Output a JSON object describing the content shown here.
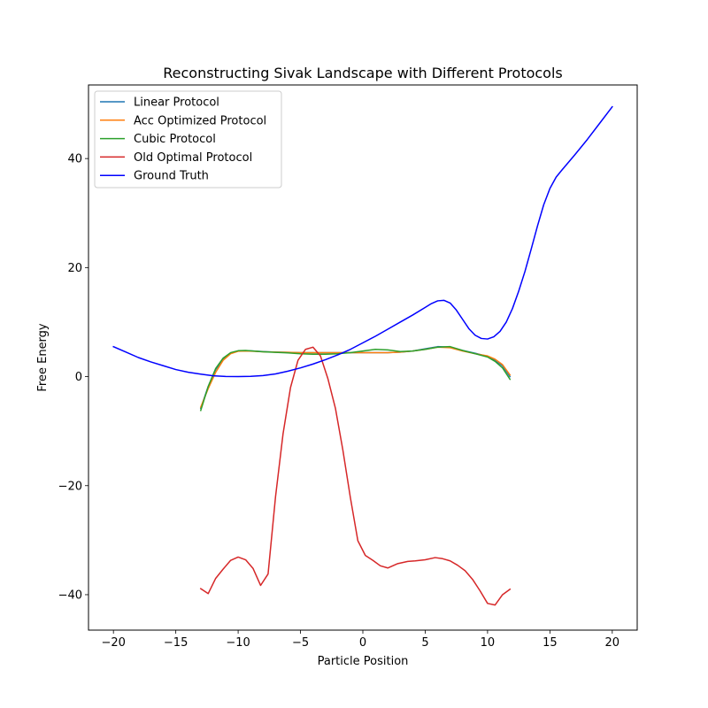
{
  "chart_data": {
    "type": "line",
    "title": "Reconstructing Sivak Landscape with Different Protocols",
    "xlabel": "Particle Position",
    "ylabel": "Free Energy",
    "xlim": [
      -22,
      22
    ],
    "ylim": [
      -46.5,
      53.5
    ],
    "xticks": [
      -20,
      -15,
      -10,
      -5,
      0,
      5,
      10,
      15,
      20
    ],
    "yticks": [
      -40,
      -20,
      0,
      20,
      40
    ],
    "xtick_labels": [
      "−20",
      "−15",
      "−10",
      "−5",
      "0",
      "5",
      "10",
      "15",
      "20"
    ],
    "ytick_labels": [
      "−40",
      "−20",
      "0",
      "20",
      "40"
    ],
    "grid": false,
    "legend_position": "upper left",
    "series": [
      {
        "name": "Linear Protocol",
        "color": "#1f77b4",
        "x": [
          -13,
          -12.4,
          -11.8,
          -11.2,
          -10.6,
          -10,
          -9.4,
          -8.8,
          -8,
          -7,
          -6,
          -5,
          -4,
          -3,
          -2,
          -1,
          0,
          1,
          2,
          3,
          4,
          5,
          6,
          7,
          8,
          9,
          10,
          10.6,
          11.2,
          11.8
        ],
        "y": [
          -5.8,
          -1.8,
          1.3,
          3.2,
          4.3,
          4.7,
          4.75,
          4.7,
          4.6,
          4.5,
          4.45,
          4.4,
          4.4,
          4.4,
          4.4,
          4.4,
          4.4,
          4.4,
          4.4,
          4.5,
          4.7,
          5.1,
          5.5,
          5.4,
          4.8,
          4.3,
          3.7,
          3.0,
          2.0,
          0.0
        ]
      },
      {
        "name": "Acc Optimized Protocol",
        "color": "#ff7f0e",
        "x": [
          -13,
          -12.4,
          -11.8,
          -11.2,
          -10.6,
          -10,
          -9.4,
          -8.8,
          -8,
          -7,
          -6,
          -5,
          -4,
          -3,
          -2,
          -1,
          0,
          1,
          2,
          3,
          4,
          5,
          6,
          7,
          8,
          9,
          10,
          10.6,
          11.2,
          11.8
        ],
        "y": [
          -5.6,
          -2.2,
          0.8,
          3.0,
          4.2,
          4.65,
          4.7,
          4.65,
          4.55,
          4.5,
          4.45,
          4.4,
          4.4,
          4.4,
          4.4,
          4.4,
          4.4,
          4.4,
          4.4,
          4.5,
          4.7,
          5.0,
          5.4,
          5.3,
          4.7,
          4.2,
          3.8,
          3.2,
          2.2,
          0.3
        ]
      },
      {
        "name": "Cubic Protocol",
        "color": "#2ca02c",
        "x": [
          -13,
          -12.4,
          -11.8,
          -11.2,
          -10.6,
          -10,
          -9.4,
          -8.8,
          -8,
          -7,
          -6,
          -5,
          -4,
          -3,
          -2,
          -1,
          0,
          1,
          2,
          3,
          4,
          5,
          6,
          7,
          8,
          9,
          10,
          10.6,
          11.2,
          11.8
        ],
        "y": [
          -6.2,
          -1.8,
          1.5,
          3.4,
          4.4,
          4.75,
          4.8,
          4.7,
          4.55,
          4.45,
          4.35,
          4.2,
          4.1,
          4.1,
          4.2,
          4.4,
          4.7,
          5.0,
          4.9,
          4.6,
          4.7,
          5.0,
          5.4,
          5.5,
          4.8,
          4.2,
          3.6,
          2.8,
          1.6,
          -0.5
        ]
      },
      {
        "name": "Old Optimal Protocol",
        "color": "#d62728",
        "x": [
          -13,
          -12.4,
          -11.8,
          -11.2,
          -10.6,
          -10,
          -9.4,
          -8.8,
          -8.2,
          -7.6,
          -7,
          -6.4,
          -5.8,
          -5.2,
          -4.6,
          -4,
          -3.4,
          -2.8,
          -2.2,
          -1.6,
          -1,
          -0.4,
          0.2,
          0.8,
          1.4,
          2,
          2.8,
          3.6,
          4.2,
          5,
          5.8,
          6.4,
          7,
          7.6,
          8.2,
          8.8,
          9.4,
          10,
          10.6,
          11.2,
          11.8
        ],
        "y": [
          -38.9,
          -39.8,
          -37,
          -35.3,
          -33.7,
          -33.1,
          -33.6,
          -35.2,
          -38.3,
          -36.2,
          -22,
          -10.5,
          -2,
          3,
          5,
          5.4,
          3.8,
          -0.4,
          -5.8,
          -13.5,
          -22.2,
          -30.1,
          -32.8,
          -33.7,
          -34.7,
          -35.1,
          -34.3,
          -33.9,
          -33.8,
          -33.6,
          -33.2,
          -33.4,
          -33.8,
          -34.6,
          -35.6,
          -37.2,
          -39.3,
          -41.6,
          -41.9,
          -40.0,
          -39.0
        ]
      },
      {
        "name": "Ground Truth",
        "color": "#0000ff",
        "x": [
          -20,
          -19,
          -18,
          -17,
          -16,
          -15,
          -14,
          -13,
          -12,
          -11,
          -10,
          -9,
          -8,
          -7,
          -6,
          -5,
          -4,
          -3,
          -2,
          -1,
          0,
          1,
          2,
          3,
          4,
          5,
          5.5,
          6,
          6.5,
          7,
          7.5,
          8,
          8.5,
          9,
          9.5,
          10,
          10.5,
          11,
          11.5,
          12,
          12.5,
          13,
          13.5,
          14,
          14.5,
          15,
          15.5,
          16,
          17,
          18,
          19,
          20
        ],
        "y": [
          5.5,
          4.5,
          3.5,
          2.7,
          2.0,
          1.3,
          0.8,
          0.45,
          0.15,
          0.03,
          0.0,
          0.05,
          0.2,
          0.5,
          1.0,
          1.6,
          2.3,
          3.1,
          4.0,
          5.0,
          6.2,
          7.4,
          8.7,
          10.0,
          11.3,
          12.7,
          13.4,
          13.9,
          14.0,
          13.5,
          12.2,
          10.5,
          8.8,
          7.6,
          7.0,
          6.9,
          7.3,
          8.3,
          10.0,
          12.5,
          15.7,
          19.3,
          23.4,
          27.6,
          31.5,
          34.5,
          36.6,
          38.0,
          40.7,
          43.5,
          46.5,
          49.5
        ]
      }
    ]
  }
}
